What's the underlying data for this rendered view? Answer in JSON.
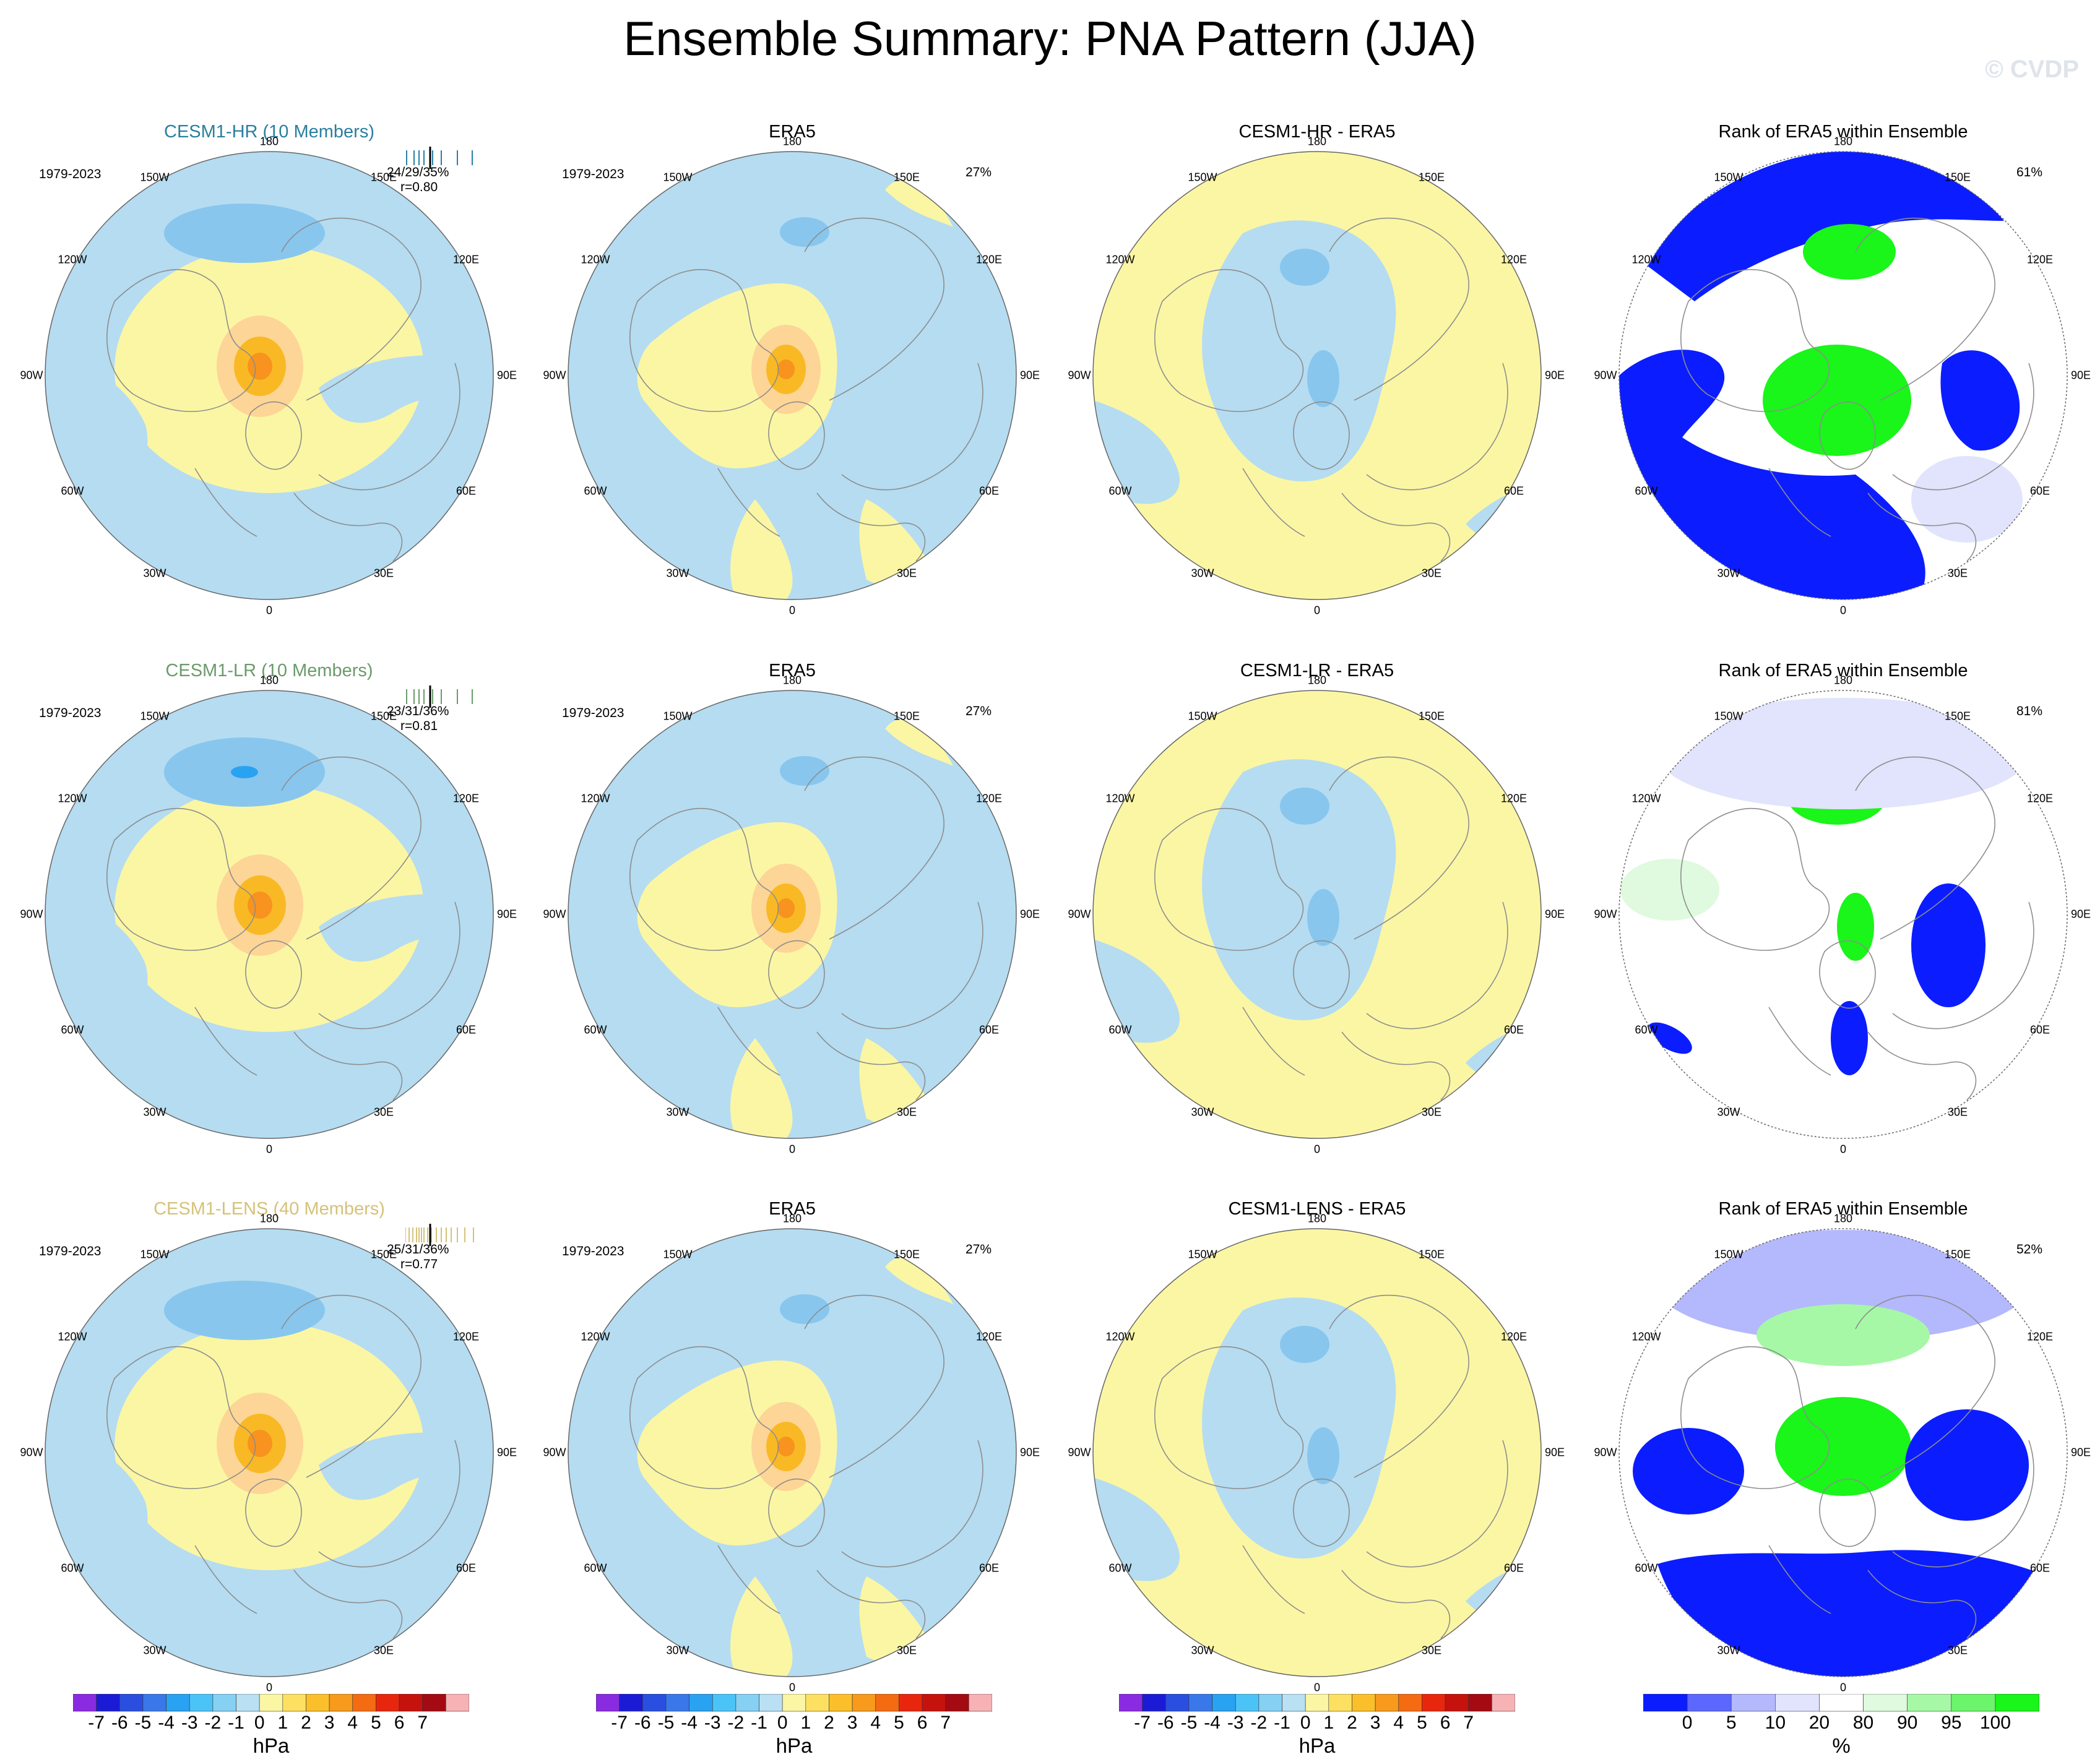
{
  "title": "Ensemble Summary: PNA Pattern (JJA)",
  "watermark": "© CVDP",
  "colors": {
    "yellow": "#fbf6a4",
    "lightblue": "#b5dcf1",
    "pink": "#fdd596",
    "orange": "#f9b924",
    "darkorange": "#f7931e",
    "midblue": "#88c6ee",
    "blue": "#5fb1ea",
    "rank_blue": "#0b1dff",
    "rank_lav": "#b4b8fc",
    "rank_pale": "#e1e4fc",
    "rank_green": "#1af51a",
    "rank_lgreen": "#a6f8a6",
    "rank_pgreen": "#dffade",
    "ensemble_hr": "#2a7fa0",
    "ensemble_lr": "#6b9b6b",
    "ensemble_lens": "#d5c27a"
  },
  "rows": [
    {
      "ensemble": {
        "title": "CESM1-HR (10 Members)",
        "years": "1979-2023",
        "pct": "24/29/35%",
        "r": "r=0.80"
      },
      "era5": {
        "title": "ERA5",
        "years": "1979-2023",
        "pct": "27%"
      },
      "diff": {
        "title": "CESM1-HR - ERA5"
      },
      "rank": {
        "title": "Rank of ERA5 within Ensemble",
        "pct": "61%"
      }
    },
    {
      "ensemble": {
        "title": "CESM1-LR (10 Members)",
        "years": "1979-2023",
        "pct": "23/31/36%",
        "r": "r=0.81"
      },
      "era5": {
        "title": "ERA5",
        "years": "1979-2023",
        "pct": "27%"
      },
      "diff": {
        "title": "CESM1-LR - ERA5"
      },
      "rank": {
        "title": "Rank of ERA5 within Ensemble",
        "pct": "81%"
      }
    },
    {
      "ensemble": {
        "title": "CESM1-LENS (40 Members)",
        "years": "1979-2023",
        "pct": "25/31/36%",
        "r": "r=0.77"
      },
      "era5": {
        "title": "ERA5",
        "years": "1979-2023",
        "pct": "27%"
      },
      "diff": {
        "title": "CESM1-LENS - ERA5"
      },
      "rank": {
        "title": "Rank of ERA5 within Ensemble",
        "pct": "52%"
      }
    }
  ],
  "grid_labels": {
    "top": "180",
    "bottom": "0",
    "left": "90W",
    "right": "90E",
    "upper_left_inner": "150W",
    "upper_left_outer": "120W",
    "upper_right_inner": "150E",
    "upper_right_outer": "120E",
    "lower_left_outer": "60W",
    "lower_left_inner": "30W",
    "lower_right_outer": "60E",
    "lower_right_inner": "30E"
  },
  "colorbar_hpa": {
    "unit": "hPa",
    "labels": [
      "-7",
      "-6",
      "-5",
      "-4",
      "-3",
      "-2",
      "-1",
      "0",
      "1",
      "2",
      "3",
      "4",
      "5",
      "6",
      "7"
    ],
    "colors": [
      "#8a2be2",
      "#1b1bd6",
      "#2a4fe0",
      "#3a78ea",
      "#2aa2f2",
      "#4cc3f7",
      "#86d0f3",
      "#b9e0f3",
      "#fbf6a4",
      "#fde061",
      "#fbbf2b",
      "#f89a1c",
      "#f46b12",
      "#e8260d",
      "#c5120d",
      "#a40a12",
      "#f7b2b5"
    ]
  },
  "colorbar_rank": {
    "unit": "%",
    "labels": [
      "0",
      "5",
      "10",
      "20",
      "80",
      "90",
      "95",
      "100"
    ],
    "colors": [
      "#0b1dff",
      "#5b67fd",
      "#b4b8fc",
      "#e1e4fc",
      "#ffffff",
      "#dffade",
      "#a6f8a6",
      "#6cf56c",
      "#1af51a"
    ]
  }
}
